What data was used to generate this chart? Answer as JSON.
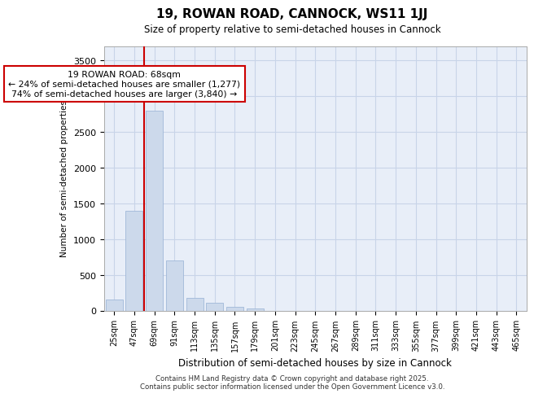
{
  "title1": "19, ROWAN ROAD, CANNOCK, WS11 1JJ",
  "title2": "Size of property relative to semi-detached houses in Cannock",
  "xlabel": "Distribution of semi-detached houses by size in Cannock",
  "ylabel": "Number of semi-detached properties",
  "categories": [
    "25sqm",
    "47sqm",
    "69sqm",
    "91sqm",
    "113sqm",
    "135sqm",
    "157sqm",
    "179sqm",
    "201sqm",
    "223sqm",
    "245sqm",
    "267sqm",
    "289sqm",
    "311sqm",
    "333sqm",
    "355sqm",
    "377sqm",
    "399sqm",
    "421sqm",
    "443sqm",
    "465sqm"
  ],
  "values": [
    150,
    1390,
    2800,
    700,
    175,
    110,
    55,
    30,
    0,
    0,
    0,
    0,
    0,
    0,
    0,
    0,
    0,
    0,
    0,
    0,
    0
  ],
  "bar_color": "#ccd9eb",
  "bar_edge_color": "#a0b8d8",
  "grid_color": "#c8d4e8",
  "background_color": "#e8eef8",
  "vline_color": "#cc0000",
  "vline_pos": 1.5,
  "annotation_line1": "19 ROWAN ROAD: 68sqm",
  "annotation_line2": "← 24% of semi-detached houses are smaller (1,277)",
  "annotation_line3": "74% of semi-detached houses are larger (3,840) →",
  "ylim": [
    0,
    3700
  ],
  "yticks": [
    0,
    500,
    1000,
    1500,
    2000,
    2500,
    3000,
    3500
  ],
  "footer1": "Contains HM Land Registry data © Crown copyright and database right 2025.",
  "footer2": "Contains public sector information licensed under the Open Government Licence v3.0."
}
